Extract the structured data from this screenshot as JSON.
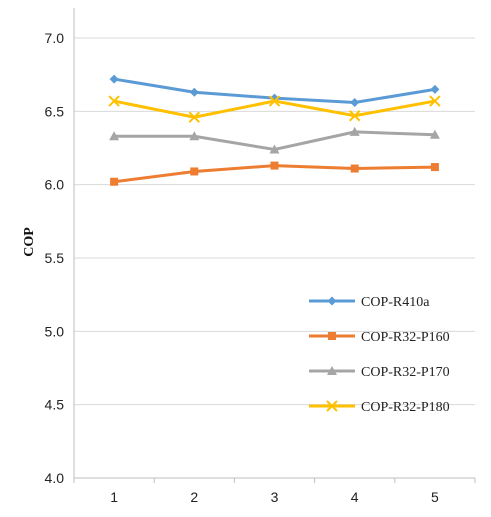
{
  "chart_data": {
    "type": "line",
    "title": "",
    "xlabel": "",
    "ylabel": "COP",
    "categories": [
      "1",
      "2",
      "3",
      "4",
      "5"
    ],
    "ylim": [
      4.0,
      7.0
    ],
    "yticks": [
      "4.0",
      "4.5",
      "5.0",
      "5.5",
      "6.0",
      "6.5",
      "7.0"
    ],
    "grid": "horizontal",
    "legend_position": "bottom-right",
    "series": [
      {
        "name": "COP-R410a",
        "color": "#5b9bd5",
        "marker": "diamond",
        "values": [
          6.72,
          6.63,
          6.59,
          6.56,
          6.65
        ]
      },
      {
        "name": "COP-R32-P160",
        "color": "#ed7d31",
        "marker": "square",
        "values": [
          6.02,
          6.09,
          6.13,
          6.11,
          6.12
        ]
      },
      {
        "name": "COP-R32-P170",
        "color": "#a5a5a5",
        "marker": "triangle",
        "values": [
          6.33,
          6.33,
          6.24,
          6.36,
          6.34
        ]
      },
      {
        "name": "COP-R32-P180",
        "color": "#ffc000",
        "marker": "x",
        "values": [
          6.57,
          6.46,
          6.57,
          6.47,
          6.57
        ]
      }
    ]
  }
}
